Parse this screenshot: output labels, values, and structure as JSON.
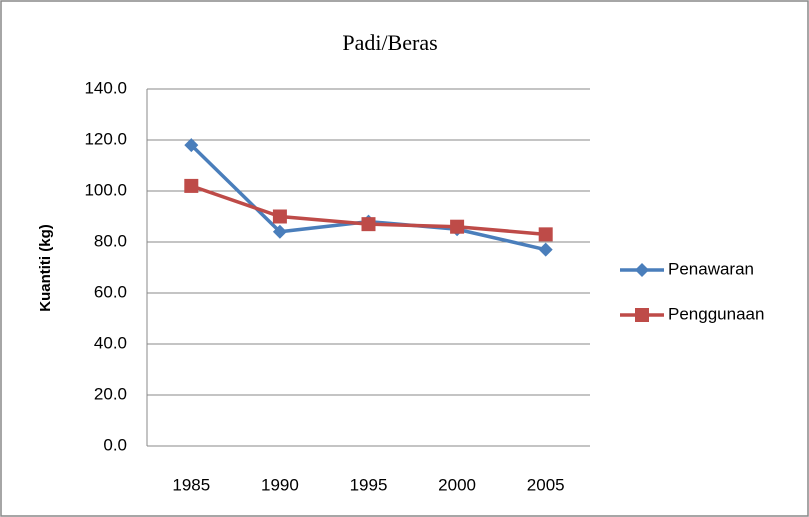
{
  "chart_data": {
    "type": "line",
    "title": "Padi/Beras",
    "y_label": "Kuantiti (kg)",
    "categories": [
      "1985",
      "1990",
      "1995",
      "2000",
      "2005"
    ],
    "series": [
      {
        "name": "Penawaran",
        "color": "#4a7ebb",
        "marker": "diamond",
        "values": [
          118,
          84,
          88,
          85,
          77
        ]
      },
      {
        "name": "Penggunaan",
        "color": "#be4b48",
        "marker": "square",
        "values": [
          102,
          90,
          87,
          86,
          83
        ]
      }
    ],
    "ylim": [
      0,
      140
    ],
    "yticks": [
      {
        "value": 0,
        "label": "0.0"
      },
      {
        "value": 20,
        "label": "20.0"
      },
      {
        "value": 40,
        "label": "40.0"
      },
      {
        "value": 60,
        "label": "60.0"
      },
      {
        "value": 80,
        "label": "80.0"
      },
      {
        "value": 100,
        "label": "100.0"
      },
      {
        "value": 120,
        "label": "120.0"
      },
      {
        "value": 140,
        "label": "140.0"
      }
    ],
    "grid": true,
    "legend": "right"
  }
}
